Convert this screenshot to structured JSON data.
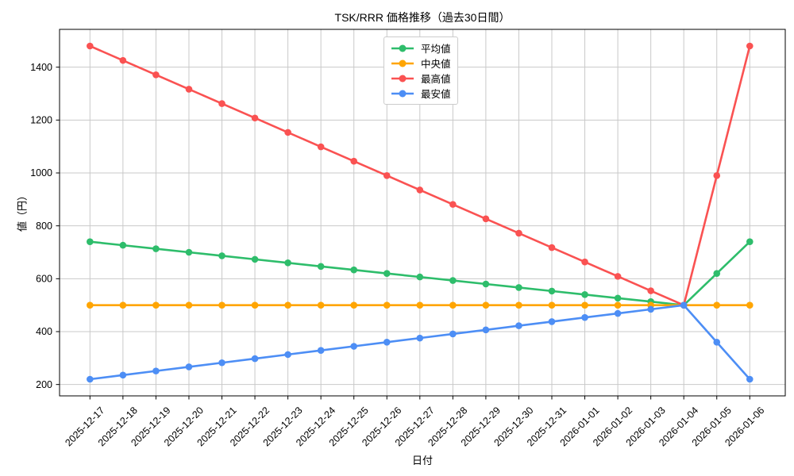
{
  "chart_data": {
    "type": "line",
    "title": "TSK/RRR 価格推移（過去30日間）",
    "xlabel": "日付",
    "ylabel": "値（円）",
    "grid": true,
    "legend_position": "upper center",
    "background": "#ffffff",
    "grid_color": "#c9c9c9",
    "x": [
      "2025-12-17",
      "2025-12-18",
      "2025-12-19",
      "2025-12-20",
      "2025-12-21",
      "2025-12-22",
      "2025-12-23",
      "2025-12-24",
      "2025-12-25",
      "2025-12-26",
      "2025-12-27",
      "2025-12-28",
      "2025-12-29",
      "2025-12-30",
      "2025-12-31",
      "2026-01-01",
      "2026-01-02",
      "2026-01-03",
      "2026-01-04",
      "2026-01-05",
      "2026-01-06"
    ],
    "series": [
      {
        "name": "平均値",
        "color": "#2ebd6b",
        "values": [
          740,
          726.67,
          713.33,
          700,
          686.67,
          673.33,
          660,
          646.67,
          633.33,
          620,
          606.67,
          593.33,
          580,
          566.67,
          553.33,
          540,
          526.67,
          513.33,
          500,
          620,
          740
        ]
      },
      {
        "name": "中央値",
        "color": "#ffa502",
        "values": [
          500,
          500,
          500,
          500,
          500,
          500,
          500,
          500,
          500,
          500,
          500,
          500,
          500,
          500,
          500,
          500,
          500,
          500,
          500,
          500,
          500
        ]
      },
      {
        "name": "最高値",
        "color": "#fa5252",
        "values": [
          1480,
          1425.56,
          1371.11,
          1316.67,
          1262.22,
          1207.78,
          1153.33,
          1098.89,
          1044.44,
          990,
          935.56,
          881.11,
          826.67,
          772.22,
          717.78,
          663.33,
          608.89,
          554.44,
          500,
          990,
          1480
        ]
      },
      {
        "name": "最安値",
        "color": "#4d8ef5",
        "values": [
          220,
          235.56,
          251.11,
          266.67,
          282.22,
          297.78,
          313.33,
          328.89,
          344.44,
          360,
          375.56,
          391.11,
          406.67,
          422.22,
          437.78,
          453.33,
          468.89,
          484.44,
          500,
          360,
          220
        ]
      }
    ],
    "y_ticks": [
      200,
      400,
      600,
      800,
      1000,
      1200,
      1400
    ],
    "ylim": [
      157,
      1543
    ]
  }
}
